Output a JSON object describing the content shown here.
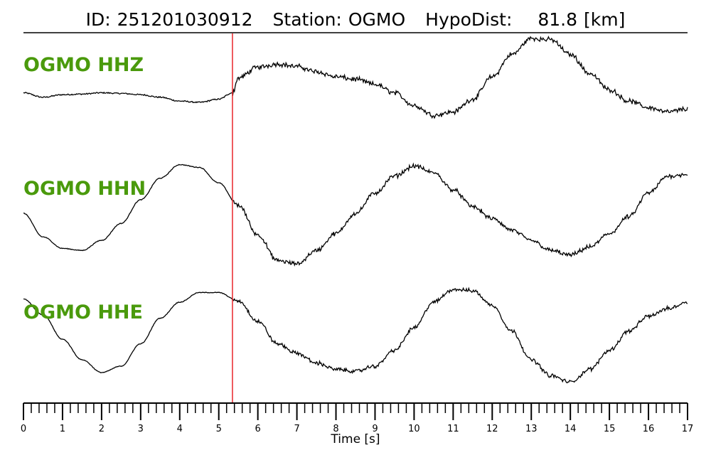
{
  "header": {
    "id_label": "ID:",
    "event_id": "251201030912",
    "station_label": "Station:",
    "station": "OGMO",
    "hypodist_label": "HypoDist:",
    "hypodist_value": "81.8",
    "hypodist_unit": "[km]"
  },
  "colors": {
    "trace": "#000000",
    "channel_label": "#4a9a0c",
    "pick_line": "#e8252a",
    "frame": "#000000"
  },
  "chart_data": {
    "type": "line",
    "xlabel": "Time [s]",
    "xlim": [
      0,
      17
    ],
    "x_ticks": [
      "0",
      "1",
      "2",
      "3",
      "4",
      "5",
      "6",
      "7",
      "8",
      "9",
      "10",
      "11",
      "12",
      "13",
      "14",
      "15",
      "16",
      "17"
    ],
    "minor_tick_step": 0.2,
    "pick_time": 5.35,
    "series": [
      {
        "name": "OGMO HHZ",
        "x": [
          0,
          0.5,
          1,
          1.5,
          2,
          2.5,
          3,
          3.5,
          4,
          4.5,
          5,
          5.35,
          5.5,
          6,
          6.5,
          7,
          7.5,
          8,
          8.5,
          9,
          9.5,
          10,
          10.5,
          11,
          11.5,
          12,
          12.5,
          13,
          13.5,
          14,
          14.5,
          15,
          15.5,
          16,
          16.5,
          17
        ],
        "y": [
          0.05,
          -0.02,
          0.02,
          0.03,
          0.05,
          0.04,
          0.02,
          -0.02,
          -0.08,
          -0.1,
          -0.05,
          0.05,
          0.28,
          0.45,
          0.5,
          0.46,
          0.38,
          0.3,
          0.26,
          0.18,
          0.05,
          -0.15,
          -0.3,
          -0.25,
          -0.05,
          0.3,
          0.65,
          0.9,
          0.88,
          0.65,
          0.35,
          0.1,
          -0.08,
          -0.18,
          -0.25,
          -0.2
        ],
        "noise": [
          0.01,
          0.025,
          0.045
        ]
      },
      {
        "name": "OGMO HHN",
        "x": [
          0,
          0.5,
          1,
          1.5,
          2,
          2.5,
          3,
          3.5,
          4,
          4.5,
          5,
          5.5,
          6,
          6.5,
          7,
          7.5,
          8,
          8.5,
          9,
          9.5,
          10,
          10.5,
          11,
          11.5,
          12,
          12.5,
          13,
          13.5,
          14,
          14.5,
          15,
          15.5,
          16,
          16.5,
          17
        ],
        "y": [
          0.0,
          -0.35,
          -0.52,
          -0.55,
          -0.4,
          -0.15,
          0.2,
          0.52,
          0.72,
          0.68,
          0.45,
          0.12,
          -0.32,
          -0.7,
          -0.75,
          -0.55,
          -0.3,
          0.0,
          0.3,
          0.55,
          0.7,
          0.6,
          0.35,
          0.1,
          -0.08,
          -0.25,
          -0.4,
          -0.55,
          -0.62,
          -0.5,
          -0.3,
          -0.05,
          0.3,
          0.55,
          0.58
        ],
        "noise": [
          0.005,
          0.02,
          0.04
        ]
      },
      {
        "name": "OGMO HHE",
        "x": [
          0,
          0.5,
          1,
          1.5,
          2,
          2.5,
          3,
          3.5,
          4,
          4.5,
          5,
          5.5,
          6,
          6.5,
          7,
          7.5,
          8,
          8.5,
          9,
          9.5,
          10,
          10.5,
          11,
          11.5,
          12,
          12.5,
          13,
          13.5,
          14,
          14.5,
          15,
          15.5,
          16,
          16.5,
          17
        ],
        "y": [
          0.55,
          0.3,
          -0.08,
          -0.4,
          -0.6,
          -0.5,
          -0.15,
          0.25,
          0.5,
          0.65,
          0.65,
          0.52,
          0.2,
          -0.15,
          -0.3,
          -0.45,
          -0.55,
          -0.58,
          -0.5,
          -0.25,
          0.1,
          0.5,
          0.7,
          0.68,
          0.45,
          0.05,
          -0.4,
          -0.65,
          -0.75,
          -0.55,
          -0.25,
          0.05,
          0.28,
          0.4,
          0.5
        ],
        "noise": [
          0.005,
          0.02,
          0.035
        ]
      }
    ]
  }
}
